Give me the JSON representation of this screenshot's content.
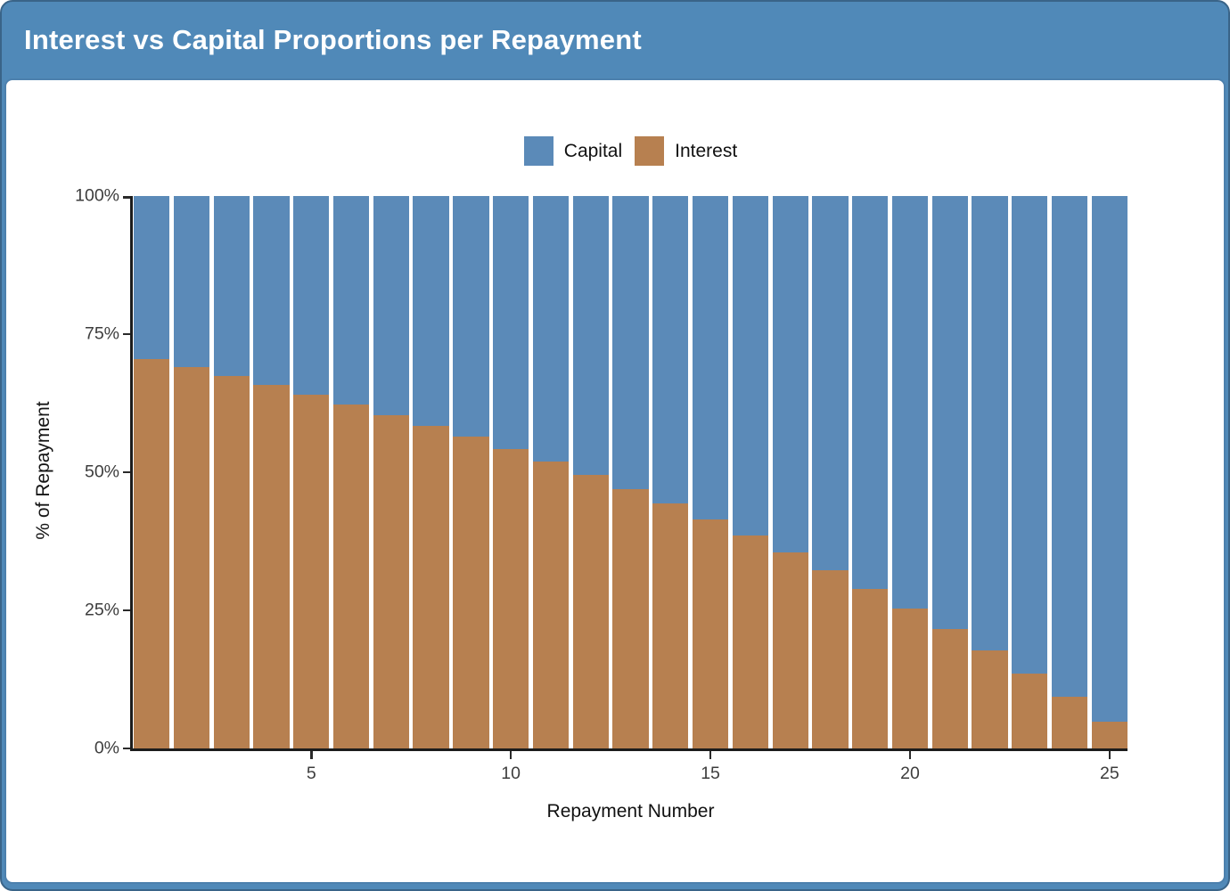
{
  "header": {
    "title": "Interest vs Capital Proportions per Repayment"
  },
  "legend": {
    "items": [
      {
        "label": "Capital",
        "color": "#5b8ab8"
      },
      {
        "label": "Interest",
        "color": "#b78050"
      }
    ]
  },
  "colors": {
    "header_background": "#5089b8",
    "card_background": "#ffffff",
    "card_border": "#4c80ad",
    "axis_line": "#1c1c1c",
    "tick_label": "#3d3d3d",
    "capital_bar": "#5b8ab8",
    "interest_bar": "#b78050"
  },
  "chart_data": {
    "type": "bar",
    "stacked": true,
    "percent_normalized": true,
    "title": "Interest vs Capital Proportions per Repayment",
    "xlabel": "Repayment Number",
    "ylabel": "% of Repayment",
    "x": [
      1,
      2,
      3,
      4,
      5,
      6,
      7,
      8,
      9,
      10,
      11,
      12,
      13,
      14,
      15,
      16,
      17,
      18,
      19,
      20,
      21,
      22,
      23,
      24,
      25
    ],
    "series": [
      {
        "name": "Capital",
        "color": "#5b8ab8",
        "values": [
          29.5,
          31.0,
          32.6,
          34.2,
          35.9,
          37.7,
          39.6,
          41.6,
          43.6,
          45.8,
          48.1,
          50.5,
          53.0,
          55.7,
          58.5,
          61.4,
          64.5,
          67.7,
          71.1,
          74.6,
          78.4,
          82.3,
          86.4,
          90.7,
          95.2
        ]
      },
      {
        "name": "Interest",
        "color": "#b78050",
        "values": [
          70.5,
          69.0,
          67.4,
          65.8,
          64.1,
          62.3,
          60.4,
          58.4,
          56.4,
          54.2,
          51.9,
          49.5,
          47.0,
          44.3,
          41.5,
          38.6,
          35.5,
          32.3,
          28.9,
          25.4,
          21.6,
          17.7,
          13.6,
          9.3,
          4.8
        ]
      }
    ],
    "x_ticks": [
      5,
      10,
      15,
      20,
      25
    ],
    "y_tick_values": [
      0,
      25,
      50,
      75,
      100
    ],
    "y_tick_labels": [
      "0%",
      "25%",
      "50%",
      "75%",
      "100%"
    ],
    "ylim": [
      0,
      100
    ],
    "legend_position": "top",
    "grid": false
  }
}
